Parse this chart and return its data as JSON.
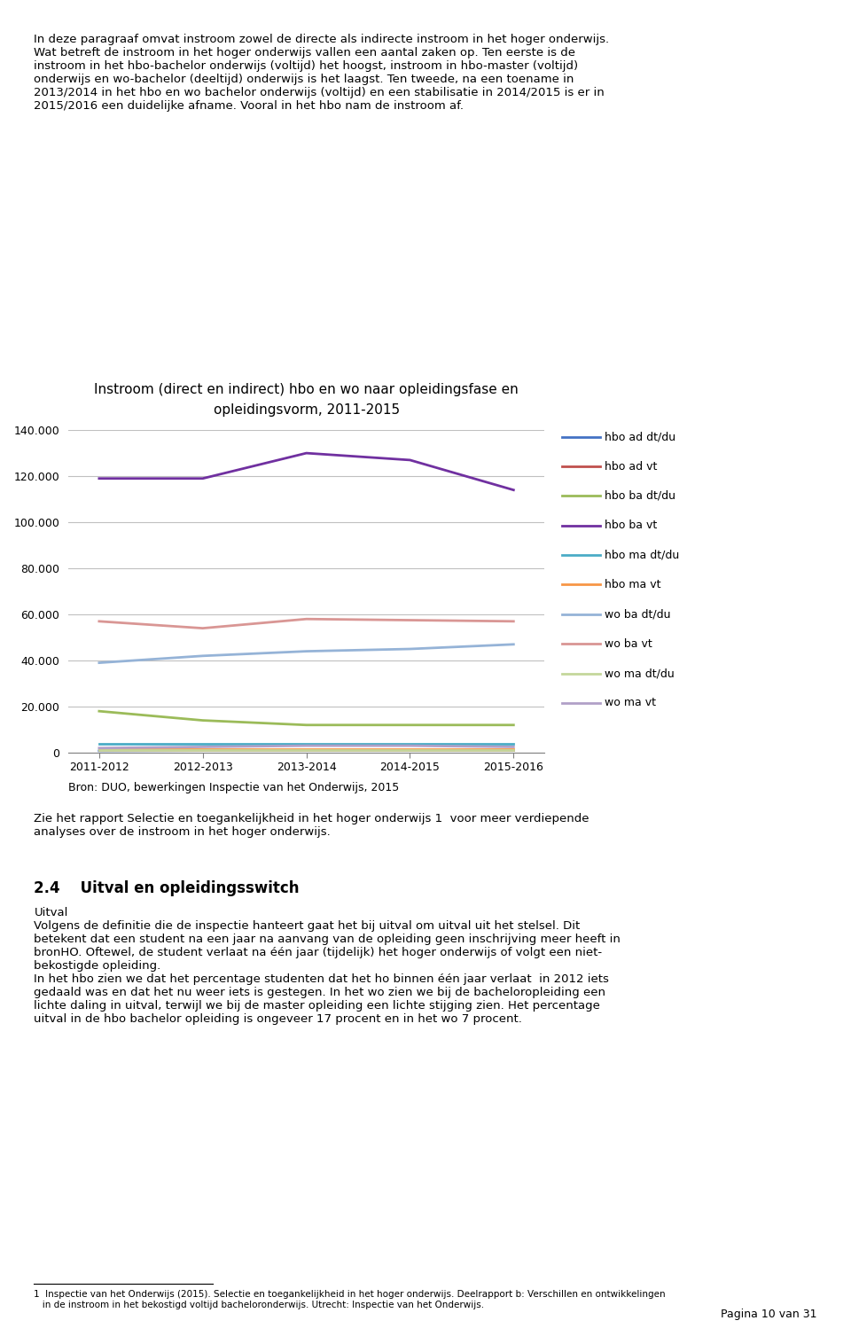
{
  "title_line1": "Instroom (direct en indirect) hbo en wo naar opleidingsfase en",
  "title_line2": "opleidingsvorm, 2011-2015",
  "x_labels": [
    "2011-2012",
    "2012-2013",
    "2013-2014",
    "2014-2015",
    "2015-2016"
  ],
  "series": [
    {
      "label": "hbo ad dt/du",
      "color": "#4472C4",
      "values": [
        800,
        900,
        900,
        900,
        900
      ]
    },
    {
      "label": "hbo ad vt",
      "color": "#C0504D",
      "values": [
        1200,
        1200,
        1200,
        1200,
        1200
      ]
    },
    {
      "label": "hbo ba dt/du",
      "color": "#9BBB59",
      "values": [
        18000,
        14000,
        12000,
        12000,
        12000
      ]
    },
    {
      "label": "hbo ba vt",
      "color": "#7030A0",
      "values": [
        119000,
        119000,
        130000,
        127000,
        114000
      ]
    },
    {
      "label": "hbo ma dt/du",
      "color": "#4BACC6",
      "values": [
        4000,
        4000,
        4000,
        4000,
        4000
      ]
    },
    {
      "label": "hbo ma vt",
      "color": "#F79646",
      "values": [
        1500,
        1500,
        1500,
        1500,
        1500
      ]
    },
    {
      "label": "wo ba dt/du",
      "color": "#95B3D7",
      "values": [
        39000,
        42000,
        44000,
        45000,
        47000
      ]
    },
    {
      "label": "wo ba vt",
      "color": "#D99694",
      "values": [
        57000,
        54000,
        58000,
        57500,
        57000
      ]
    },
    {
      "label": "wo ma dt/du",
      "color": "#C4D79B",
      "values": [
        1000,
        1000,
        1000,
        1000,
        1000
      ]
    },
    {
      "label": "wo ma vt",
      "color": "#B1A0C7",
      "values": [
        2000,
        2500,
        3000,
        3000,
        2500
      ]
    }
  ],
  "ylim": [
    0,
    140000
  ],
  "yticks": [
    0,
    20000,
    40000,
    60000,
    80000,
    100000,
    120000,
    140000
  ],
  "source_text": "Bron: DUO, bewerkingen Inspectie van het Onderwijs, 2015",
  "background_color": "#FFFFFF",
  "chart_bg_color": "#FFFFFF",
  "grid_color": "#C0C0C0",
  "line_width": 2.0,
  "title_fontsize": 11,
  "tick_fontsize": 9,
  "legend_fontsize": 9,
  "source_fontsize": 9
}
